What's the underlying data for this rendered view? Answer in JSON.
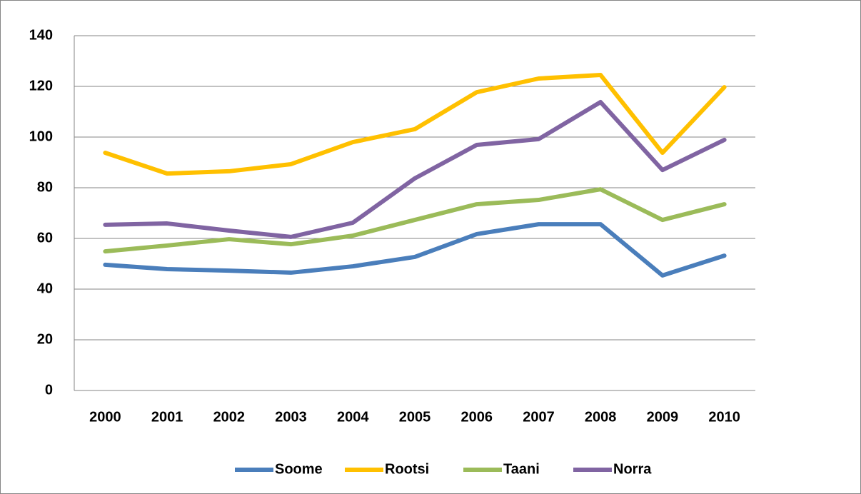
{
  "chart_data": {
    "type": "line",
    "categories": [
      "2000",
      "2001",
      "2002",
      "2003",
      "2004",
      "2005",
      "2006",
      "2007",
      "2008",
      "2009",
      "2010"
    ],
    "series": [
      {
        "name": "Soome",
        "color": "#4a7ebb",
        "values": [
          49.6,
          47.9,
          47.3,
          46.5,
          49,
          52.7,
          61.7,
          65.6,
          65.6,
          45.4,
          53.2
        ]
      },
      {
        "name": "Rootsi",
        "color": "#ffc000",
        "values": [
          93.8,
          85.6,
          86.5,
          89.3,
          98,
          103.1,
          117.7,
          123.1,
          124.5,
          93.8,
          119.7
        ]
      },
      {
        "name": "Taani",
        "color": "#9bbb59",
        "values": [
          54.9,
          57.2,
          59.7,
          57.7,
          61.1,
          67.3,
          73.5,
          75.2,
          79.4,
          67.3,
          73.5
        ]
      },
      {
        "name": "Norra",
        "color": "#8064a2",
        "values": [
          65.4,
          65.9,
          63.1,
          60.6,
          66.2,
          83.7,
          96.9,
          99.2,
          113.8,
          87,
          98.9
        ]
      }
    ],
    "ylim": [
      0,
      140
    ],
    "yticks": [
      0,
      20,
      40,
      60,
      80,
      100,
      120,
      140
    ],
    "grid": true,
    "legend": "bottom"
  }
}
